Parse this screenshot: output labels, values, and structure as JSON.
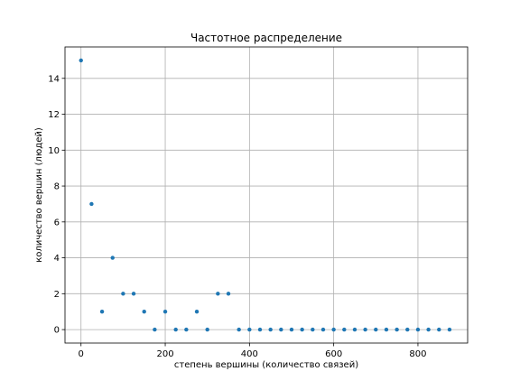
{
  "chart_data": {
    "type": "scatter",
    "title": "Частотное распределение",
    "xlabel": "степень вершины (количество связей)",
    "ylabel": "количество вершин (людей)",
    "xlim": [
      -38,
      918
    ],
    "ylim": [
      -0.75,
      15.75
    ],
    "xticks": [
      0,
      200,
      400,
      600,
      800
    ],
    "yticks": [
      0,
      2,
      4,
      6,
      8,
      10,
      12,
      14
    ],
    "grid": true,
    "marker_color": "#1f77b4",
    "x": [
      0,
      25,
      50,
      75,
      100,
      125,
      150,
      175,
      200,
      225,
      250,
      275,
      300,
      325,
      350,
      375,
      400,
      425,
      450,
      475,
      500,
      525,
      550,
      575,
      600,
      625,
      650,
      675,
      700,
      725,
      750,
      775,
      800,
      825,
      850,
      875
    ],
    "y": [
      15,
      7,
      1,
      4,
      2,
      2,
      1,
      0,
      1,
      0,
      0,
      1,
      0,
      2,
      2,
      0,
      0,
      0,
      0,
      0,
      0,
      0,
      0,
      0,
      0,
      0,
      0,
      0,
      0,
      0,
      0,
      0,
      0,
      0,
      0,
      0
    ]
  }
}
